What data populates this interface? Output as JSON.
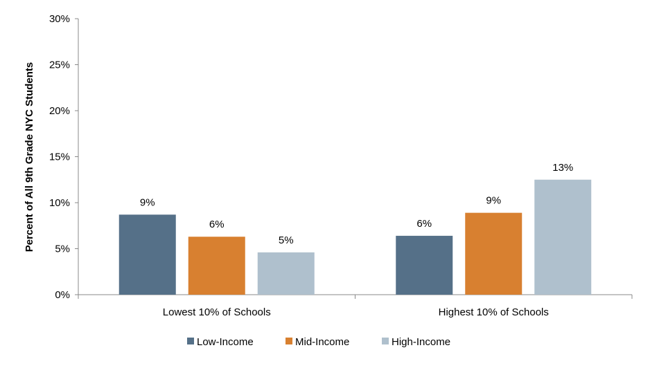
{
  "chart_data": {
    "type": "bar",
    "title": "",
    "xlabel": "",
    "ylabel": "Percent of All 9th Grade NYC Students",
    "ylim": [
      0,
      30
    ],
    "yticks": [
      "0%",
      "5%",
      "10%",
      "15%",
      "20%",
      "25%",
      "30%"
    ],
    "ytick_values": [
      0,
      5,
      10,
      15,
      20,
      25,
      30
    ],
    "grid": false,
    "legend_position": "bottom",
    "categories": [
      "Lowest 10% of Schools",
      "Highest 10% of Schools"
    ],
    "series": [
      {
        "name": "Low-Income",
        "color": "#557088",
        "values": [
          8.7,
          6.4
        ],
        "labels": [
          "9%",
          "6%"
        ]
      },
      {
        "name": "Mid-Income",
        "color": "#d88030",
        "values": [
          6.3,
          8.9
        ],
        "labels": [
          "6%",
          "9%"
        ]
      },
      {
        "name": "High-Income",
        "color": "#afc0cd",
        "values": [
          4.6,
          12.5
        ],
        "labels": [
          "5%",
          "13%"
        ]
      }
    ]
  }
}
